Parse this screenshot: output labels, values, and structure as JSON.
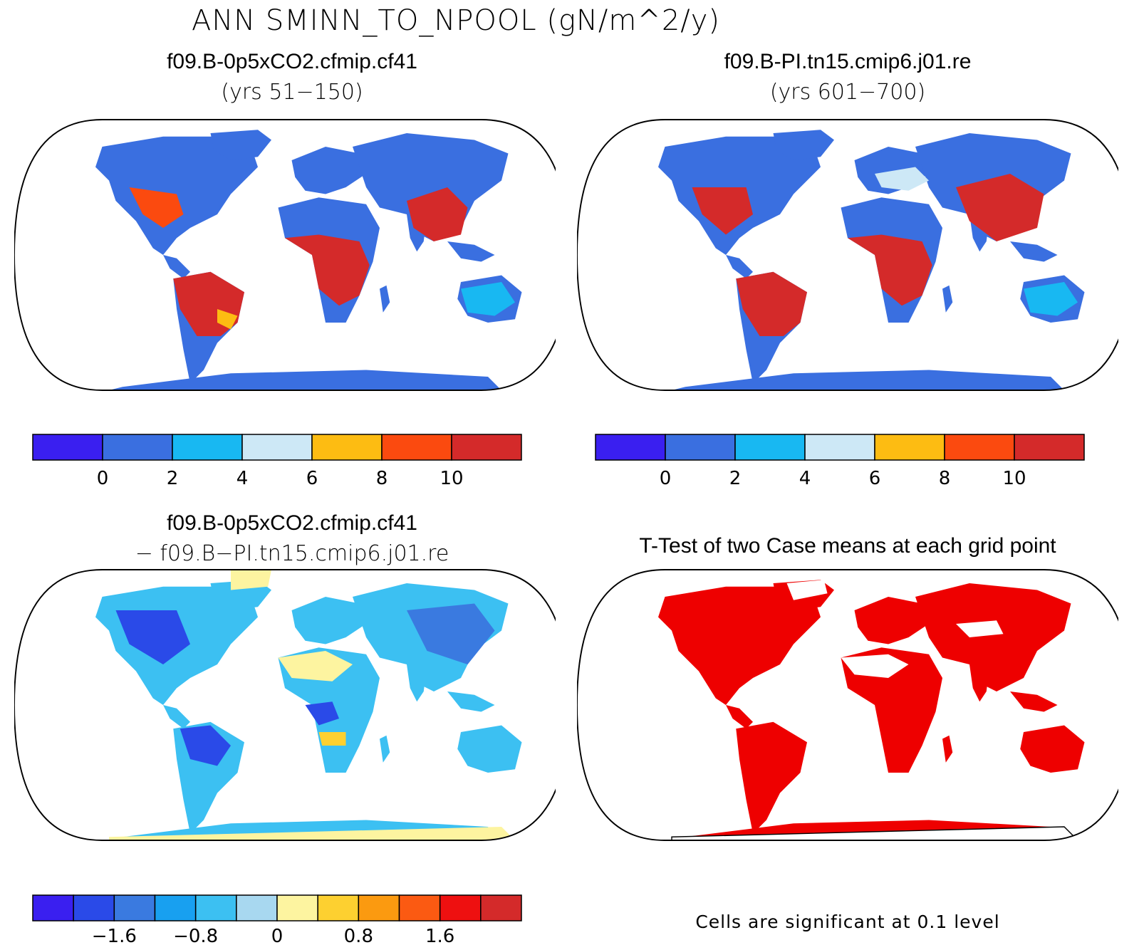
{
  "title": "ANN SMINN_TO_NPOOL (gN/m^2/y)",
  "panels": {
    "top_left": {
      "title": "f09.B-0p5xCO2.cfmip.cf41",
      "subtitle": "(yrs 51−150)"
    },
    "top_right": {
      "title": "f09.B-PI.tn15.cmip6.j01.re",
      "subtitle": "(yrs 601−700)"
    },
    "bottom_left": {
      "title": "f09.B-0p5xCO2.cfmip.cf41",
      "subtitle": "− f09.B−PI.tn15.cmip6.j01.re"
    },
    "bottom_right": {
      "title": "T-Test of two Case means at each grid point",
      "note": "Cells are significant at 0.1 level"
    }
  },
  "colorbars": {
    "absolute": {
      "colors": [
        "#3a1ff0",
        "#3a6fe0",
        "#18b8f2",
        "#cde8f6",
        "#fdbc12",
        "#fb4a0f",
        "#d42a2a"
      ],
      "labels": [
        "0",
        "2",
        "4",
        "6",
        "8",
        "10"
      ]
    },
    "difference": {
      "colors": [
        "#3a1ff0",
        "#2a4ae8",
        "#3a7ae0",
        "#18a0f0",
        "#3cc0f2",
        "#a8d8f0",
        "#fdf4a0",
        "#fdd030",
        "#fb9a10",
        "#fb5a12",
        "#ee1010",
        "#d42a2a"
      ],
      "labels": [
        "−1.6",
        "−0.8",
        "0",
        "0.8",
        "1.6"
      ]
    }
  },
  "significance_color": "#ee0000"
}
